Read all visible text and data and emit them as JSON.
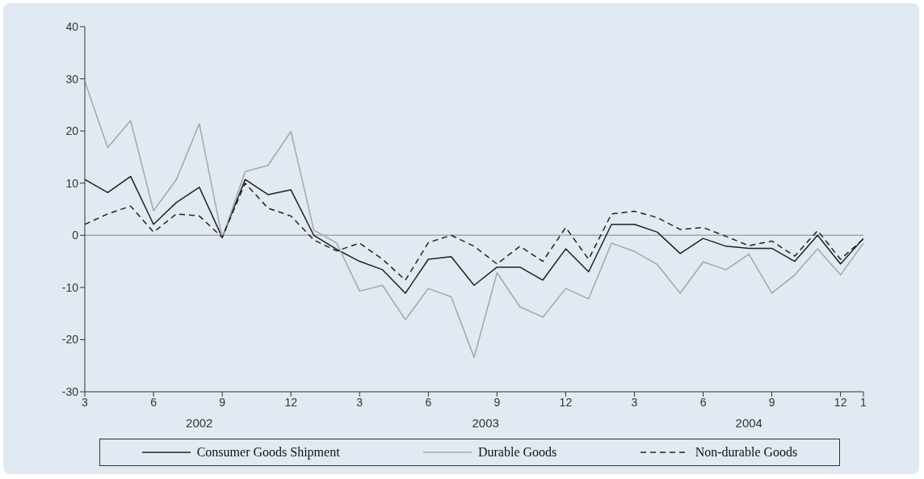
{
  "chart_data": {
    "type": "line",
    "categories": [
      "3",
      null,
      null,
      "6",
      null,
      null,
      "9",
      null,
      null,
      "12",
      null,
      null,
      "3",
      null,
      null,
      "6",
      null,
      null,
      "9",
      null,
      null,
      "12",
      null,
      null,
      "3",
      null,
      null,
      "6",
      null,
      null,
      "9",
      null,
      null,
      "12",
      "1"
    ],
    "series": [
      {
        "name": "Consumer Goods Shipment",
        "color": "#231f20",
        "line_style": "solid",
        "values": [
          10.7,
          8.2,
          11.3,
          2.1,
          6.3,
          9.2,
          -0.4,
          10.7,
          7.8,
          8.7,
          0,
          -2.7,
          -5.0,
          -6.6,
          -11.1,
          -4.6,
          -4.1,
          -9.6,
          -6.1,
          -6.1,
          -8.6,
          -2.6,
          -7.0,
          2.1,
          2.1,
          0.6,
          -3.5,
          -0.6,
          -2.1,
          -2.5,
          -2.5,
          -5.0,
          0,
          -5.5,
          -0.6
        ]
      },
      {
        "name": "Durable Goods",
        "color": "#a6a6a6",
        "line_style": "solid",
        "values": [
          29.5,
          16.8,
          22,
          4.7,
          10.7,
          21.4,
          -0.5,
          12.2,
          13.4,
          19.9,
          1,
          -1.5,
          -10.7,
          -9.6,
          -16.2,
          -10.2,
          -11.8,
          -23.4,
          -7.2,
          -13.7,
          -15.7,
          -10.2,
          -12.2,
          -1.5,
          -3.1,
          -5.6,
          -11.1,
          -5.1,
          -6.6,
          -3.6,
          -11.1,
          -7.6,
          -2.6,
          -7.6,
          -1.5
        ]
      },
      {
        "name": "Non-durable Goods",
        "color": "#231f20",
        "line_style": "dashed",
        "values": [
          2.1,
          4.1,
          5.6,
          0.6,
          4.1,
          3.7,
          -0.4,
          10,
          5.2,
          3.7,
          -0.9,
          -3,
          -1.5,
          -4.6,
          -8.6,
          -1.4,
          0,
          -2.1,
          -5.5,
          -2.1,
          -5.0,
          1.5,
          -4.6,
          4.1,
          4.6,
          3.4,
          1.1,
          1.5,
          -0.2,
          -2.0,
          -1.1,
          -4.0,
          0.9,
          -4.6,
          -0.7
        ]
      }
    ],
    "annotations": [
      "2002",
      "2003",
      "2004"
    ],
    "ylim": [
      -30,
      40
    ],
    "yticks": [
      -30,
      -20,
      -10,
      0,
      10,
      20,
      30,
      40
    ],
    "ref_lines": [
      {
        "axis": "y",
        "value": 0,
        "color": "#a6a6a6"
      }
    ],
    "grid": false,
    "legend": "bottom",
    "marker": "none"
  }
}
